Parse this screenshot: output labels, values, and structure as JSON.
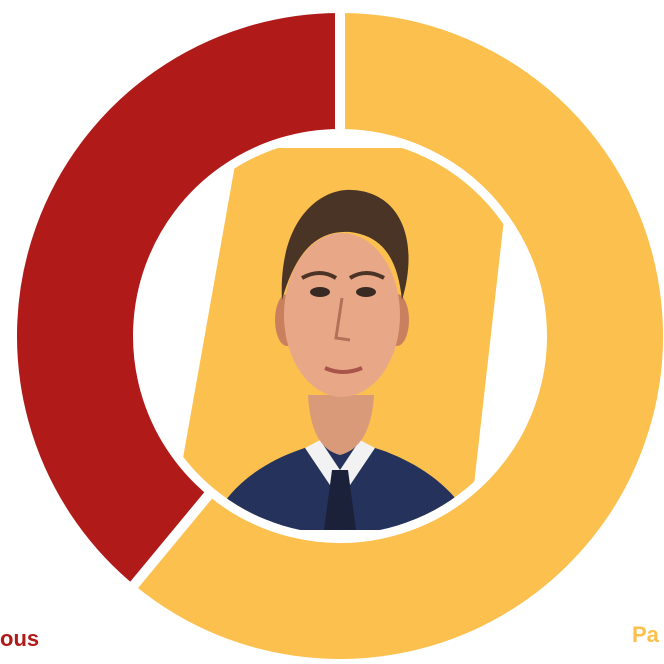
{
  "chart_data": {
    "type": "pie",
    "donut": true,
    "slices": [
      {
        "label": "Pa",
        "value": 61,
        "color": "#FBC04D"
      },
      {
        "label": "ous",
        "value": 39,
        "color": "#B01A19"
      }
    ],
    "center_image": "portrait-illustration"
  }
}
